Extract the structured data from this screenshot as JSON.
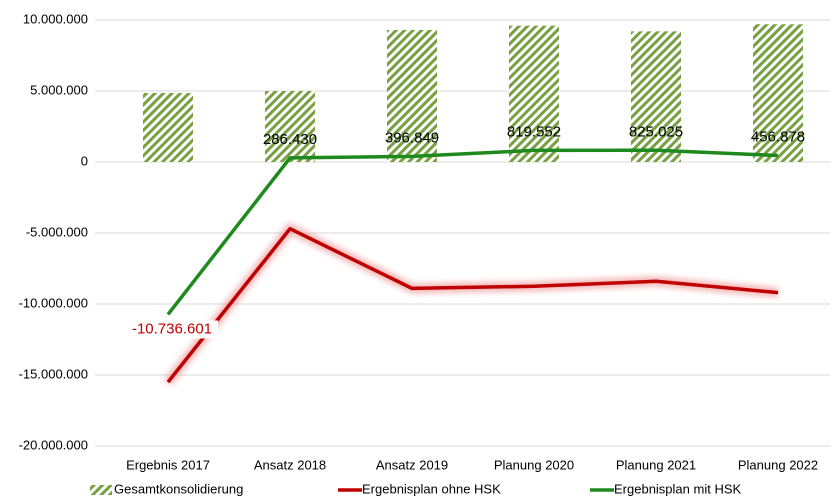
{
  "chart_data": {
    "type": "combo",
    "categories": [
      "Ergebnis 2017",
      "Ansatz 2018",
      "Ansatz 2019",
      "Planung 2020",
      "Planung 2021",
      "Planung 2022"
    ],
    "series": [
      {
        "name": "Gesamtkonsolidierung",
        "type": "bar",
        "color": "#77a043",
        "values": [
          4860000,
          5000000,
          9300000,
          9600000,
          9200000,
          9700000
        ]
      },
      {
        "name": "Ergebnisplan ohne HSK",
        "type": "line",
        "color": "#c00000",
        "values": [
          -15500000,
          -4700000,
          -8900000,
          -8750000,
          -8400000,
          -9200000
        ]
      },
      {
        "name": "Ergebnisplan mit HSK",
        "type": "line",
        "color": "#1e8a1e",
        "values": [
          -10736601,
          286430,
          396849,
          819552,
          825025,
          456878
        ],
        "value_labels": [
          "-10.736.601",
          "286.430",
          "396.849",
          "819.552",
          "825.025",
          "456.878"
        ]
      }
    ],
    "ylim": [
      -20000000,
      10000000
    ],
    "yticks": [
      {
        "value": -20000000,
        "label": "-20.000.000"
      },
      {
        "value": -15000000,
        "label": "-15.000.000"
      },
      {
        "value": -10000000,
        "label": "-10.000.000"
      },
      {
        "value": -5000000,
        "label": "-5.000.000"
      },
      0,
      {
        "value": 5000000,
        "label": "5.000.000"
      },
      {
        "value": 10000000,
        "label": "10.000.000"
      }
    ],
    "grid": true,
    "legend": "bottom"
  }
}
